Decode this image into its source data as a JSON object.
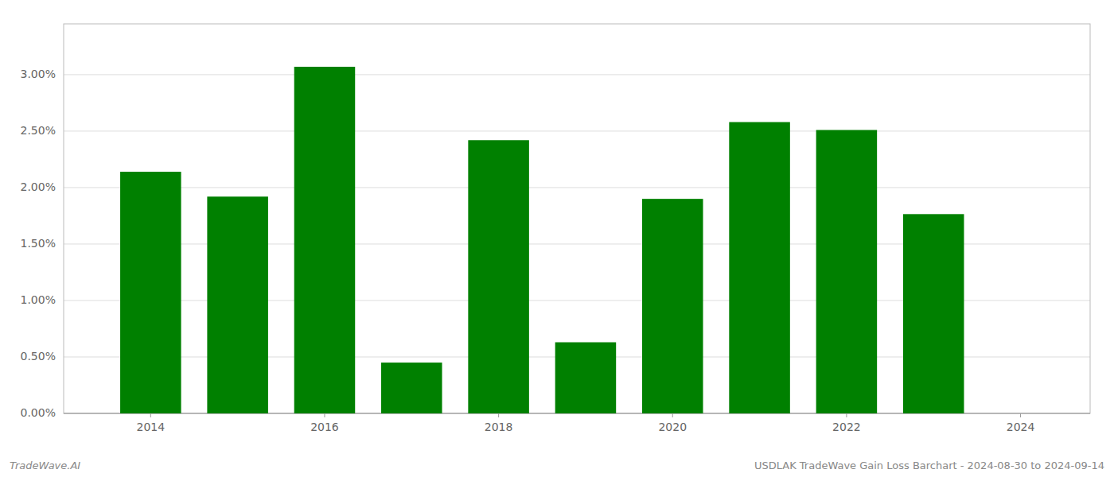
{
  "chart_data": {
    "type": "bar",
    "x": [
      2014,
      2015,
      2016,
      2017,
      2018,
      2019,
      2020,
      2021,
      2022,
      2023,
      2024
    ],
    "values": [
      0.0214,
      0.0192,
      0.0307,
      0.0045,
      0.0242,
      0.0063,
      0.019,
      0.0258,
      0.0251,
      0.01765,
      null
    ],
    "color": "#008000",
    "xlim": [
      2013.0,
      2024.8
    ],
    "xticks": [
      2014,
      2016,
      2018,
      2020,
      2022,
      2024
    ],
    "ylim": [
      0,
      0.0345
    ],
    "yticks": [
      {
        "value": 0.0,
        "label": "0.00%"
      },
      {
        "value": 0.005,
        "label": "0.50%"
      },
      {
        "value": 0.01,
        "label": "1.00%"
      },
      {
        "value": 0.015,
        "label": "1.50%"
      },
      {
        "value": 0.02,
        "label": "2.00%"
      },
      {
        "value": 0.025,
        "label": "2.50%"
      },
      {
        "value": 0.03,
        "label": "3.00%"
      }
    ],
    "grid": true,
    "annotations": [
      "TradeWave.AI",
      "USDLAK TradeWave Gain Loss Barchart - 2024-08-30 to 2024-09-14"
    ]
  }
}
